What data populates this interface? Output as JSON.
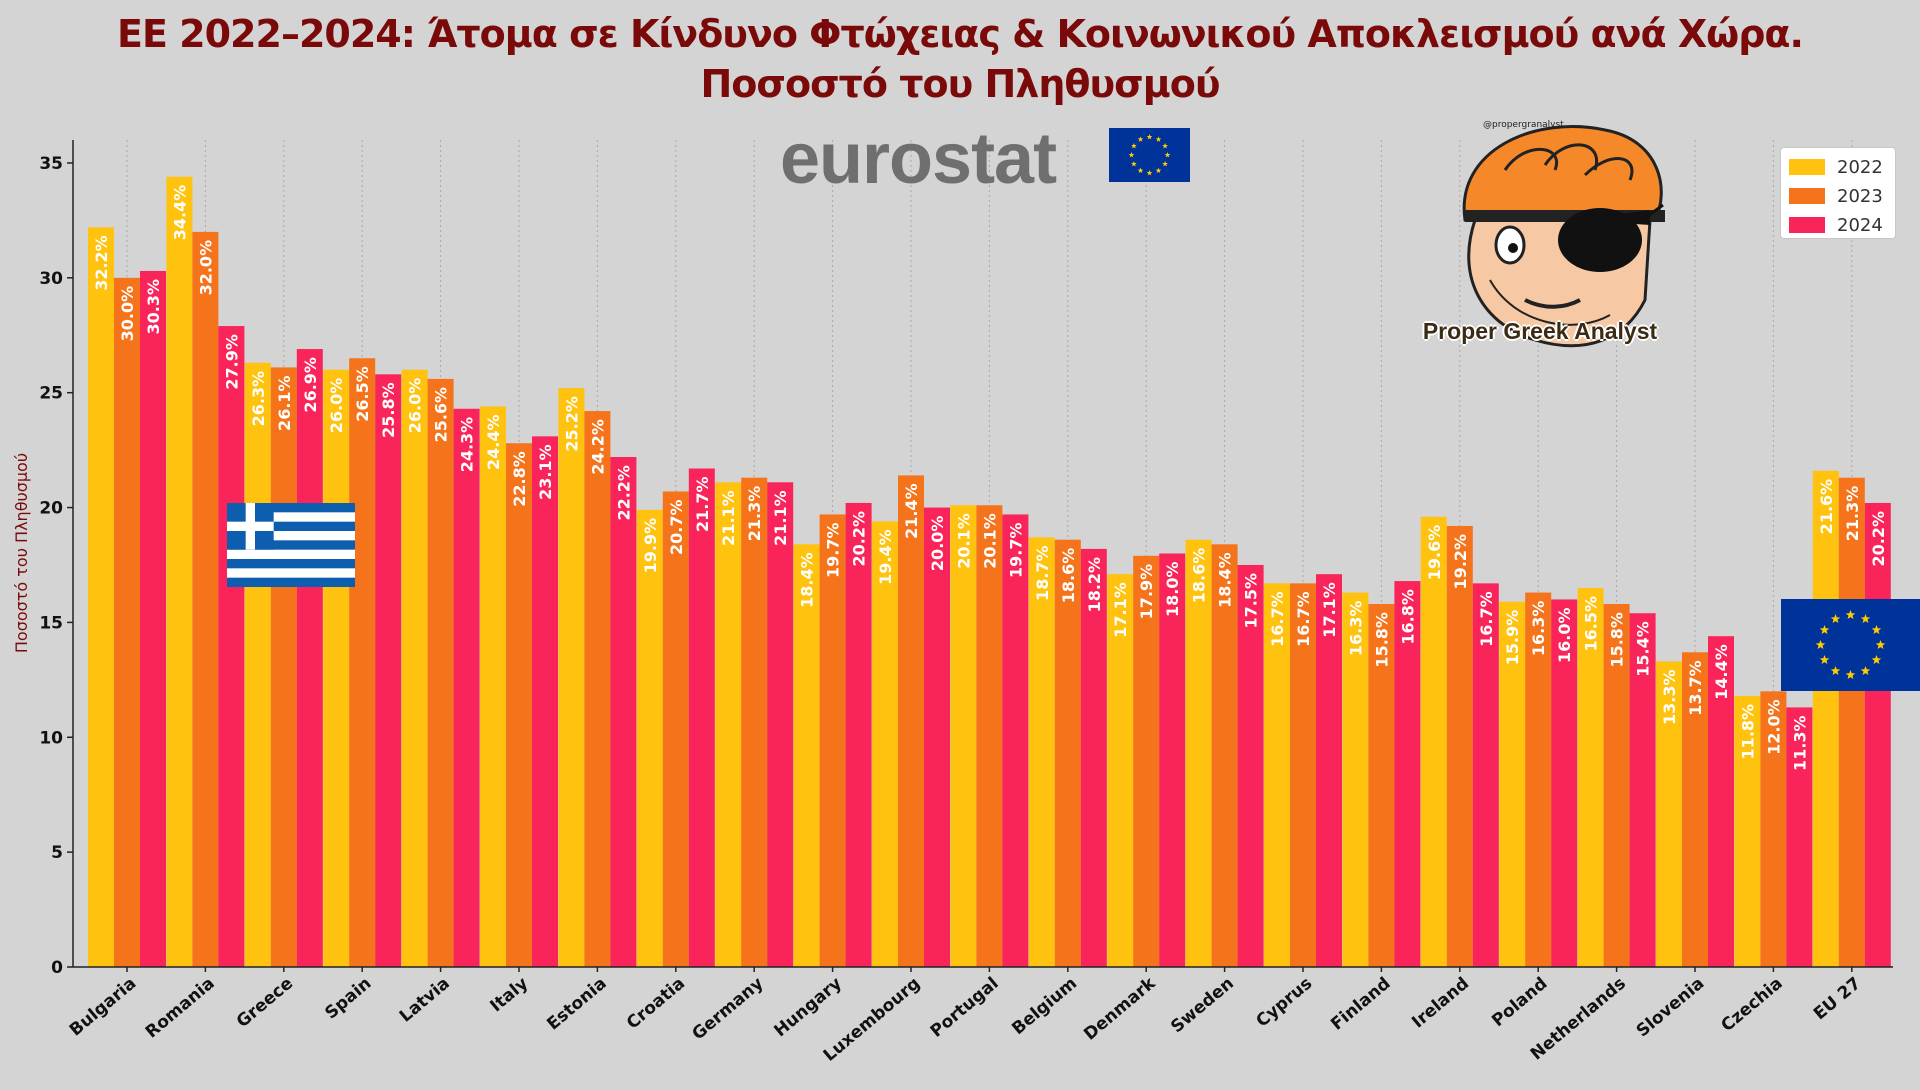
{
  "title_line1": "ΕΕ 2022–2024: Άτομα σε Κίνδυνο Φτώχειας & Κοινωνικού Αποκλεισμού ανά Χώρα.",
  "title_line2": "Ποσοστό του Πληθυσμού",
  "eurostat_logo_text": "eurostat",
  "brand_caption": "Proper Greek Analyst",
  "brand_handle": "@propergranalyst",
  "colors": {
    "background": "#d4d4d4",
    "title": "#7a0a0a",
    "series_2022": "#ffc20e",
    "series_2023": "#f5731b",
    "series_2024": "#f8245a",
    "eu_blue": "#003399",
    "eu_star": "#ffcc00",
    "greek_blue": "#0d5eaf"
  },
  "icons": [
    "eu-flag-icon",
    "greek-flag-icon",
    "mascot-icon"
  ],
  "chart_data": {
    "type": "bar",
    "title": "ΕΕ 2022–2024: Άτομα σε Κίνδυνο Φτώχειας & Κοινωνικού Αποκλεισμού ανά Χώρα. Ποσοστό του Πληθυσμού",
    "ylabel": "Ποσοστό του Πληθυσμού",
    "xlabel": "",
    "ylim": [
      0,
      36
    ],
    "yticks": [
      0,
      5,
      10,
      15,
      20,
      25,
      30,
      35
    ],
    "grid": "vertical dotted",
    "legend_position": "top-right",
    "categories": [
      "Bulgaria",
      "Romania",
      "Greece",
      "Spain",
      "Latvia",
      "Italy",
      "Estonia",
      "Croatia",
      "Germany",
      "Hungary",
      "Luxembourg",
      "Portugal",
      "Belgium",
      "Denmark",
      "Sweden",
      "Cyprus",
      "Finland",
      "Ireland",
      "Poland",
      "Netherlands",
      "Slovenia",
      "Czechia",
      "EU 27"
    ],
    "series": [
      {
        "name": "2022",
        "values": [
          32.2,
          34.4,
          26.3,
          26.0,
          26.0,
          24.4,
          25.2,
          19.9,
          21.1,
          18.4,
          19.4,
          20.1,
          18.7,
          17.1,
          18.6,
          16.7,
          16.3,
          19.6,
          15.9,
          16.5,
          13.3,
          11.8,
          21.6
        ]
      },
      {
        "name": "2023",
        "values": [
          30.0,
          32.0,
          26.1,
          26.5,
          25.6,
          22.8,
          24.2,
          20.7,
          21.3,
          19.7,
          21.4,
          20.1,
          18.6,
          17.9,
          18.4,
          16.7,
          15.8,
          19.2,
          16.3,
          15.8,
          13.7,
          12.0,
          21.3
        ]
      },
      {
        "name": "2024",
        "values": [
          30.3,
          27.9,
          26.9,
          25.8,
          24.3,
          23.1,
          22.2,
          21.7,
          21.1,
          20.2,
          20.0,
          19.7,
          18.2,
          18.0,
          17.5,
          17.1,
          16.8,
          16.7,
          16.0,
          15.4,
          14.4,
          11.3,
          20.2
        ]
      }
    ],
    "value_label_suffix": "%"
  }
}
